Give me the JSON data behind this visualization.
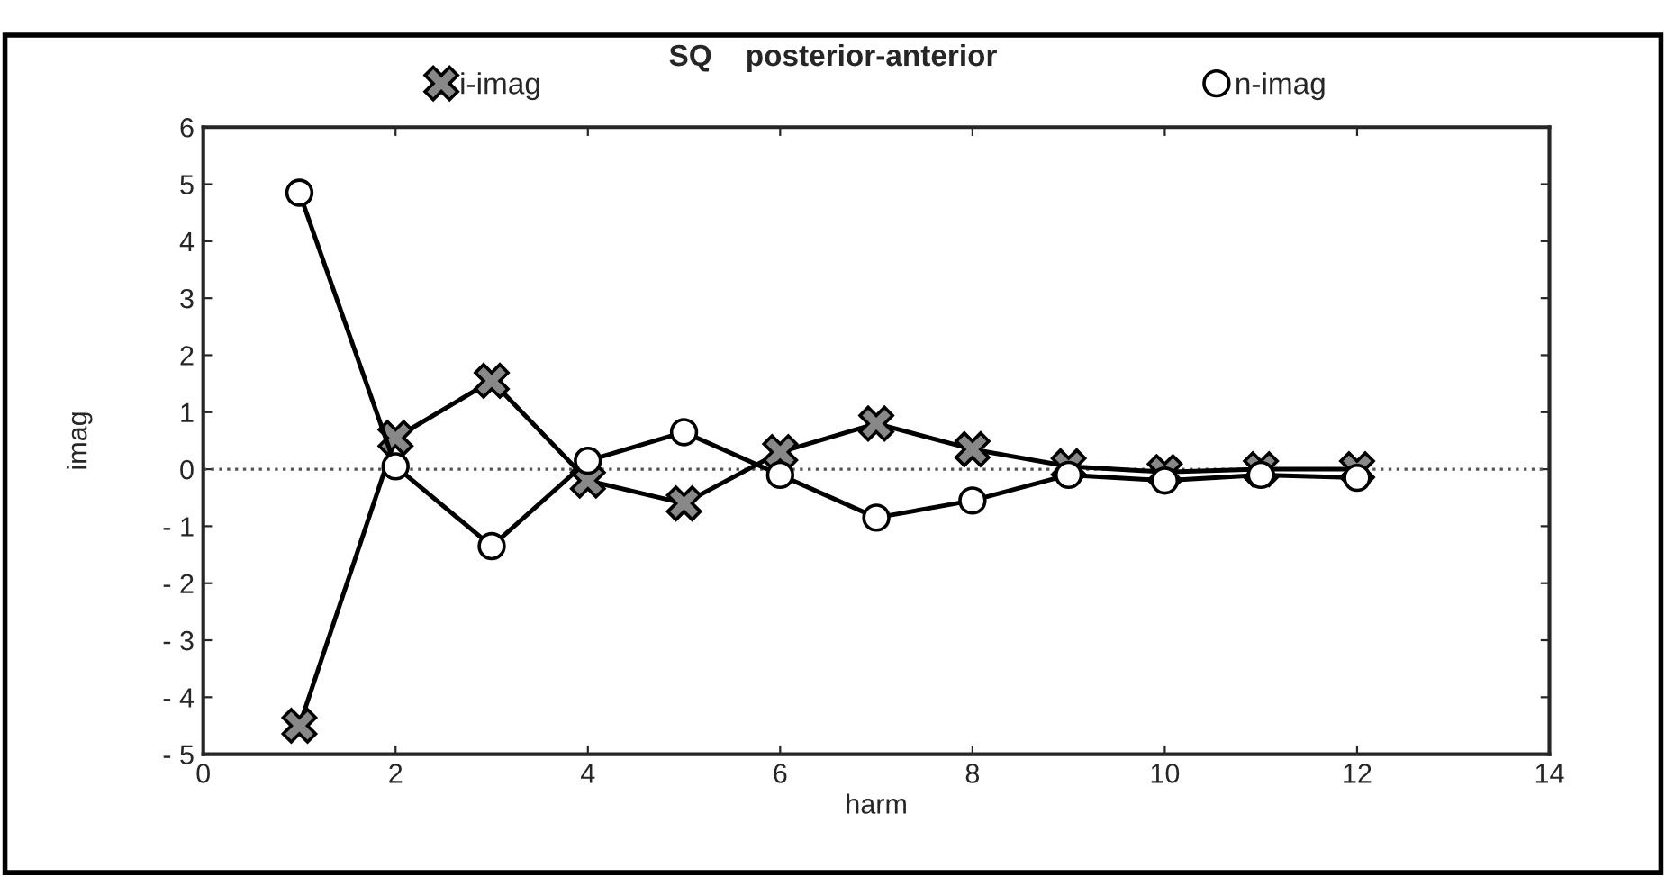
{
  "chart_data": {
    "type": "line",
    "title": "SQ    posterior-anterior",
    "xlabel": "harm",
    "ylabel": "imag",
    "x": [
      1,
      2,
      3,
      4,
      5,
      6,
      7,
      8,
      9,
      10,
      11,
      12
    ],
    "series": [
      {
        "name": "i-imag",
        "color": "#000000",
        "marker": "cross",
        "values": [
          -4.5,
          0.55,
          1.55,
          -0.2,
          -0.6,
          0.3,
          0.8,
          0.35,
          0.05,
          -0.05,
          0.0,
          0.0
        ]
      },
      {
        "name": "n-imag",
        "color": "#000000",
        "marker": "circle",
        "values": [
          4.85,
          0.05,
          -1.35,
          0.15,
          0.65,
          -0.1,
          -0.85,
          -0.55,
          -0.1,
          -0.2,
          -0.1,
          -0.15
        ]
      }
    ],
    "xlim": [
      0,
      14
    ],
    "xticks": [
      0,
      2,
      4,
      6,
      8,
      10,
      12,
      14
    ],
    "ylim": [
      -5,
      6
    ],
    "yticks": [
      {
        "value": -5,
        "label": "- 5"
      },
      {
        "value": -4,
        "label": "- 4"
      },
      {
        "value": -3,
        "label": "- 3"
      },
      {
        "value": -2,
        "label": "- 2"
      },
      {
        "value": -1,
        "label": "- 1"
      },
      0,
      1,
      2,
      3,
      4,
      5,
      6
    ],
    "ref_lines": [
      {
        "axis": "y",
        "value": 0,
        "line_style": "dotted",
        "color": "#555555"
      }
    ],
    "grid": false,
    "legend": "top",
    "line_style": "solid"
  }
}
